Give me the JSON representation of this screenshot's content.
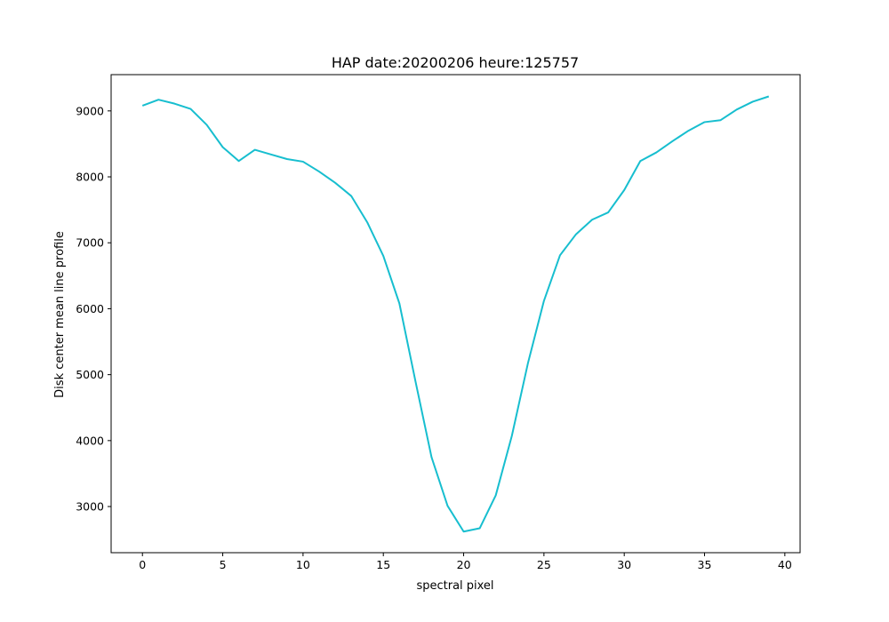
{
  "chart_data": {
    "type": "line",
    "title": "HAP date:20200206 heure:125757",
    "xlabel": "spectral pixel",
    "ylabel": "Disk center mean line profile",
    "xlim": [
      -1.95,
      40.95
    ],
    "ylim": [
      2300,
      9550
    ],
    "xticks": [
      0,
      5,
      10,
      15,
      20,
      25,
      30,
      35,
      40
    ],
    "yticks": [
      3000,
      4000,
      5000,
      6000,
      7000,
      8000,
      9000
    ],
    "grid": false,
    "color": "#17becf",
    "series": [
      {
        "x": [
          0,
          1,
          2,
          3,
          4,
          5,
          6,
          7,
          8,
          9,
          10,
          11,
          12,
          13,
          14,
          15,
          16,
          17,
          18,
          19,
          20,
          21,
          22,
          23,
          24,
          25,
          26,
          27,
          28,
          29,
          30,
          31,
          32,
          33,
          34,
          35,
          36,
          37,
          38,
          39
        ],
        "values": [
          9080,
          9170,
          9110,
          9030,
          8790,
          8450,
          8240,
          8410,
          8340,
          8270,
          8230,
          8080,
          7910,
          7710,
          7310,
          6800,
          6080,
          4900,
          3750,
          3010,
          2620,
          2670,
          3170,
          4070,
          5170,
          6120,
          6810,
          7130,
          7350,
          7460,
          7800,
          8240,
          8370,
          8540,
          8700,
          8830,
          8860,
          9020,
          9140,
          9220
        ]
      }
    ]
  }
}
